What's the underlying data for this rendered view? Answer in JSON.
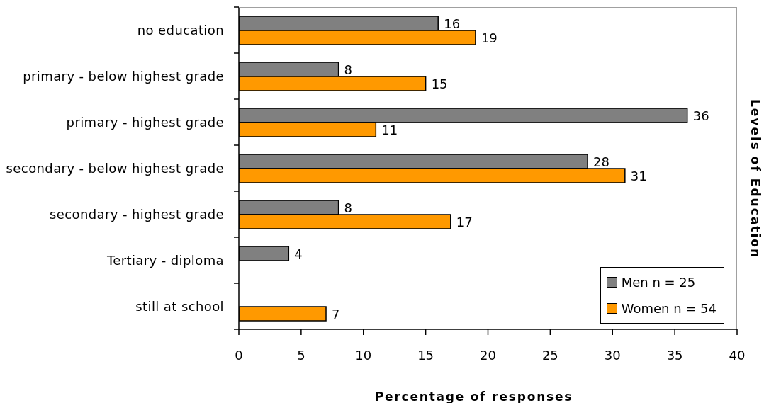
{
  "chart_data": {
    "type": "bar",
    "orientation": "horizontal",
    "categories": [
      "no education",
      "primary - below highest grade",
      "primary - highest grade",
      "secondary - below highest grade",
      "secondary - highest grade",
      "Tertiary - diploma",
      "still at school"
    ],
    "series": [
      {
        "name": "Men n = 25",
        "color": "#808080",
        "values": [
          16,
          8,
          36,
          28,
          8,
          4,
          null
        ]
      },
      {
        "name": "Women n = 54",
        "color": "#ff9900",
        "values": [
          19,
          15,
          11,
          31,
          17,
          null,
          7
        ]
      }
    ],
    "xlim": [
      0,
      40
    ],
    "xticks": [
      0,
      5,
      10,
      15,
      20,
      25,
      30,
      35,
      40
    ],
    "xlabel": "Percentage of responses",
    "ylabel": "Levels of Education",
    "data_labels": true,
    "legend": "bottom right",
    "grid": false
  }
}
